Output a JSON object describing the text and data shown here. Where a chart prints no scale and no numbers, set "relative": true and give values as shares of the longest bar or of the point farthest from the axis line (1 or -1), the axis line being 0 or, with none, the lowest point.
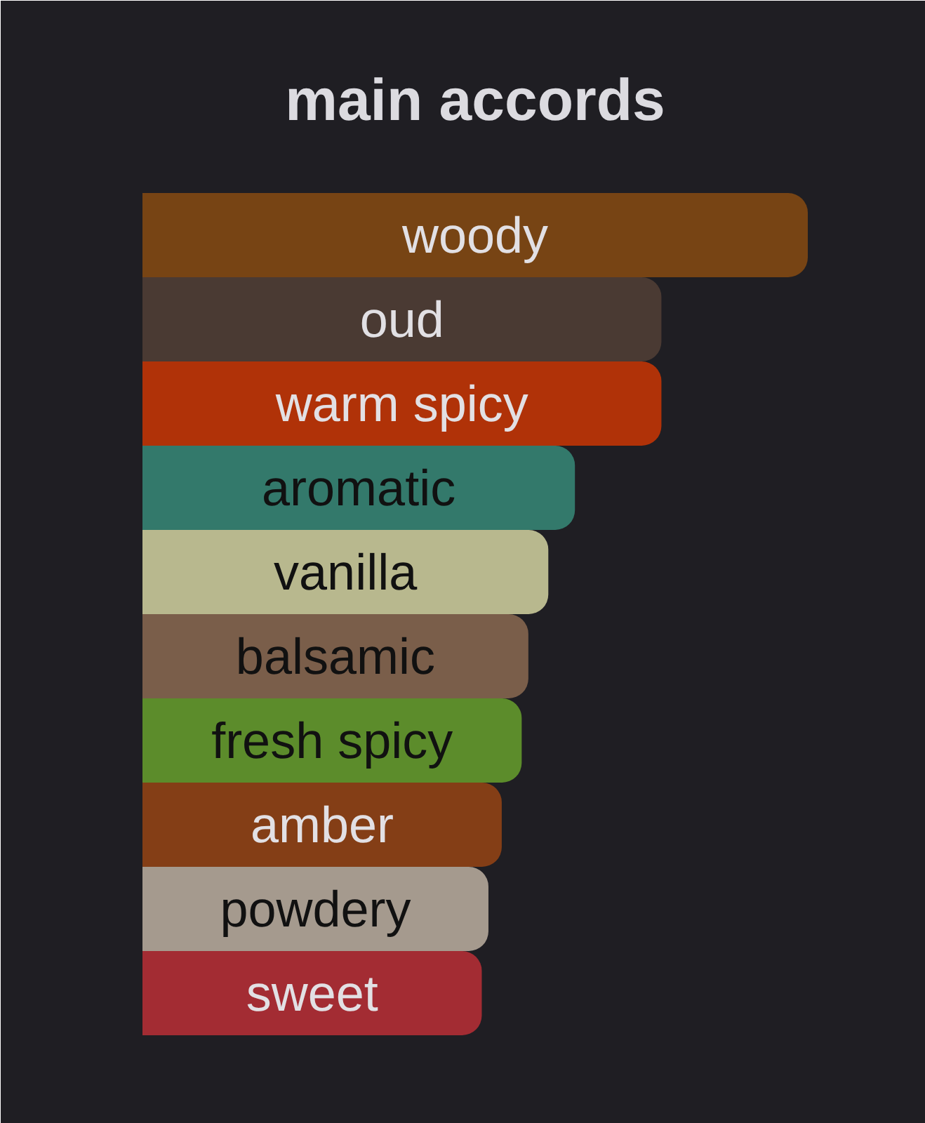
{
  "chart_data": {
    "type": "bar",
    "orientation": "horizontal",
    "relative": true,
    "title": "main accords",
    "categories": [
      "woody",
      "oud",
      "warm spicy",
      "aromatic",
      "vanilla",
      "balsamic",
      "fresh spicy",
      "amber",
      "powdery",
      "sweet"
    ],
    "values": [
      1,
      0.78,
      0.78,
      0.65,
      0.61,
      0.58,
      0.57,
      0.54,
      0.52,
      0.51
    ],
    "colors": [
      "#774414",
      "#4a3a33",
      "#b03208",
      "#33796b",
      "#b8b88e",
      "#7a5e4a",
      "#5c8c2b",
      "#843e16",
      "#a59a8e",
      "#a32c33"
    ]
  }
}
